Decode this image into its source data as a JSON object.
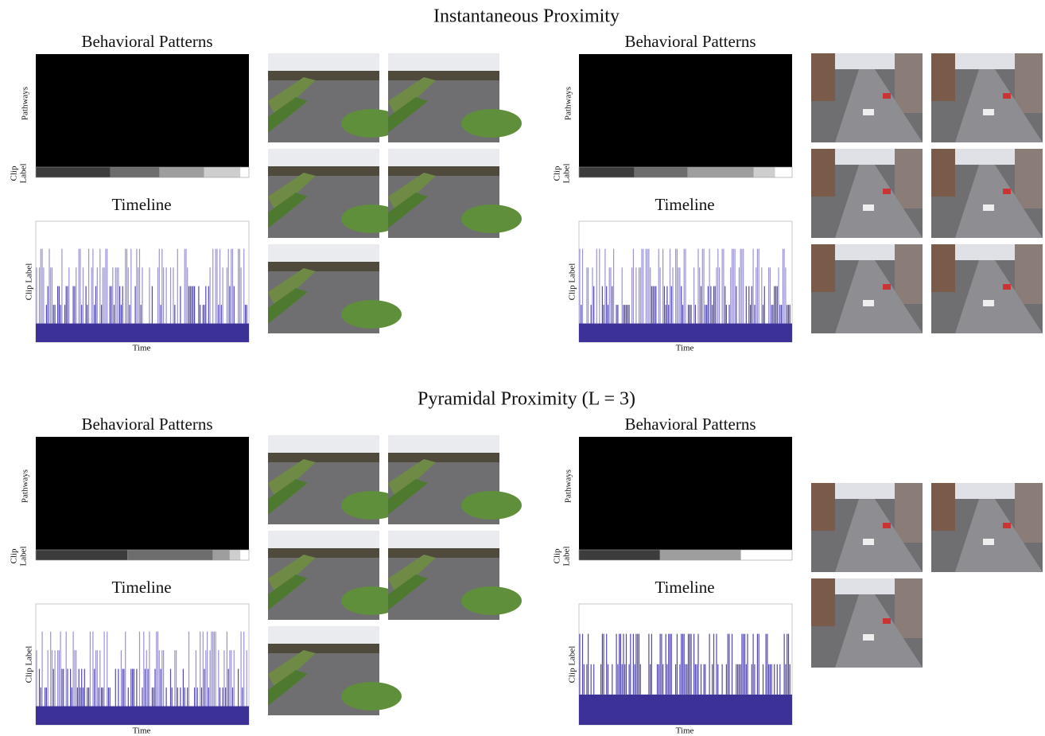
{
  "sections": [
    {
      "title": "Instantaneous Proximity",
      "panels": [
        {
          "patterns_title": "Behavioral Patterns",
          "pathways_label": "Pathways",
          "clip_label": [
            "Clip",
            "Label"
          ],
          "timeline_title": "Timeline",
          "timeline_ylabel": "Clip Label",
          "timeline_xlabel": "Time"
        },
        {
          "patterns_title": "Behavioral Patterns",
          "pathways_label": "Pathways",
          "clip_label": [
            "Clip",
            "Label"
          ],
          "timeline_title": "Timeline",
          "timeline_ylabel": "Clip Label",
          "timeline_xlabel": "Time"
        }
      ]
    },
    {
      "title": "Pyramidal Proximity (L = 3)",
      "panels": [
        {
          "patterns_title": "Behavioral Patterns",
          "pathways_label": "Pathways",
          "clip_label": [
            "Clip",
            "Label"
          ],
          "timeline_title": "Timeline",
          "timeline_ylabel": "Clip Label",
          "timeline_xlabel": "Time"
        },
        {
          "patterns_title": "Behavioral Patterns",
          "pathways_label": "Pathways",
          "clip_label": [
            "Clip",
            "Label"
          ],
          "timeline_title": "Timeline",
          "timeline_ylabel": "Clip Label",
          "timeline_xlabel": "Time"
        }
      ]
    }
  ]
}
